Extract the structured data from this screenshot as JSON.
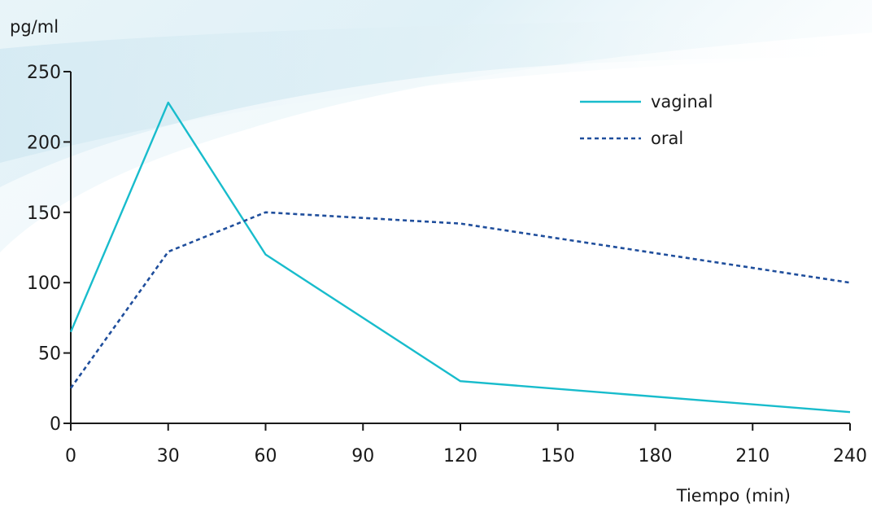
{
  "chart_data": {
    "type": "line",
    "xlabel": "Tiempo (min)",
    "ylabel": "pg/ml",
    "xlim": [
      0,
      240
    ],
    "ylim": [
      0,
      250
    ],
    "xticks": [
      0,
      30,
      60,
      90,
      120,
      150,
      180,
      210,
      240
    ],
    "yticks": [
      0,
      50,
      100,
      150,
      200,
      250
    ],
    "grid": false,
    "legend_position": "top-right",
    "series": [
      {
        "name": "vaginal",
        "style": "solid",
        "color": "#18bccc",
        "x": [
          0,
          30,
          60,
          120,
          240
        ],
        "y": [
          65,
          228,
          120,
          30,
          8
        ]
      },
      {
        "name": "oral",
        "style": "dashed",
        "color": "#1f4e9c",
        "x": [
          0,
          30,
          60,
          120,
          240
        ],
        "y": [
          25,
          122,
          150,
          142,
          100
        ]
      }
    ]
  }
}
